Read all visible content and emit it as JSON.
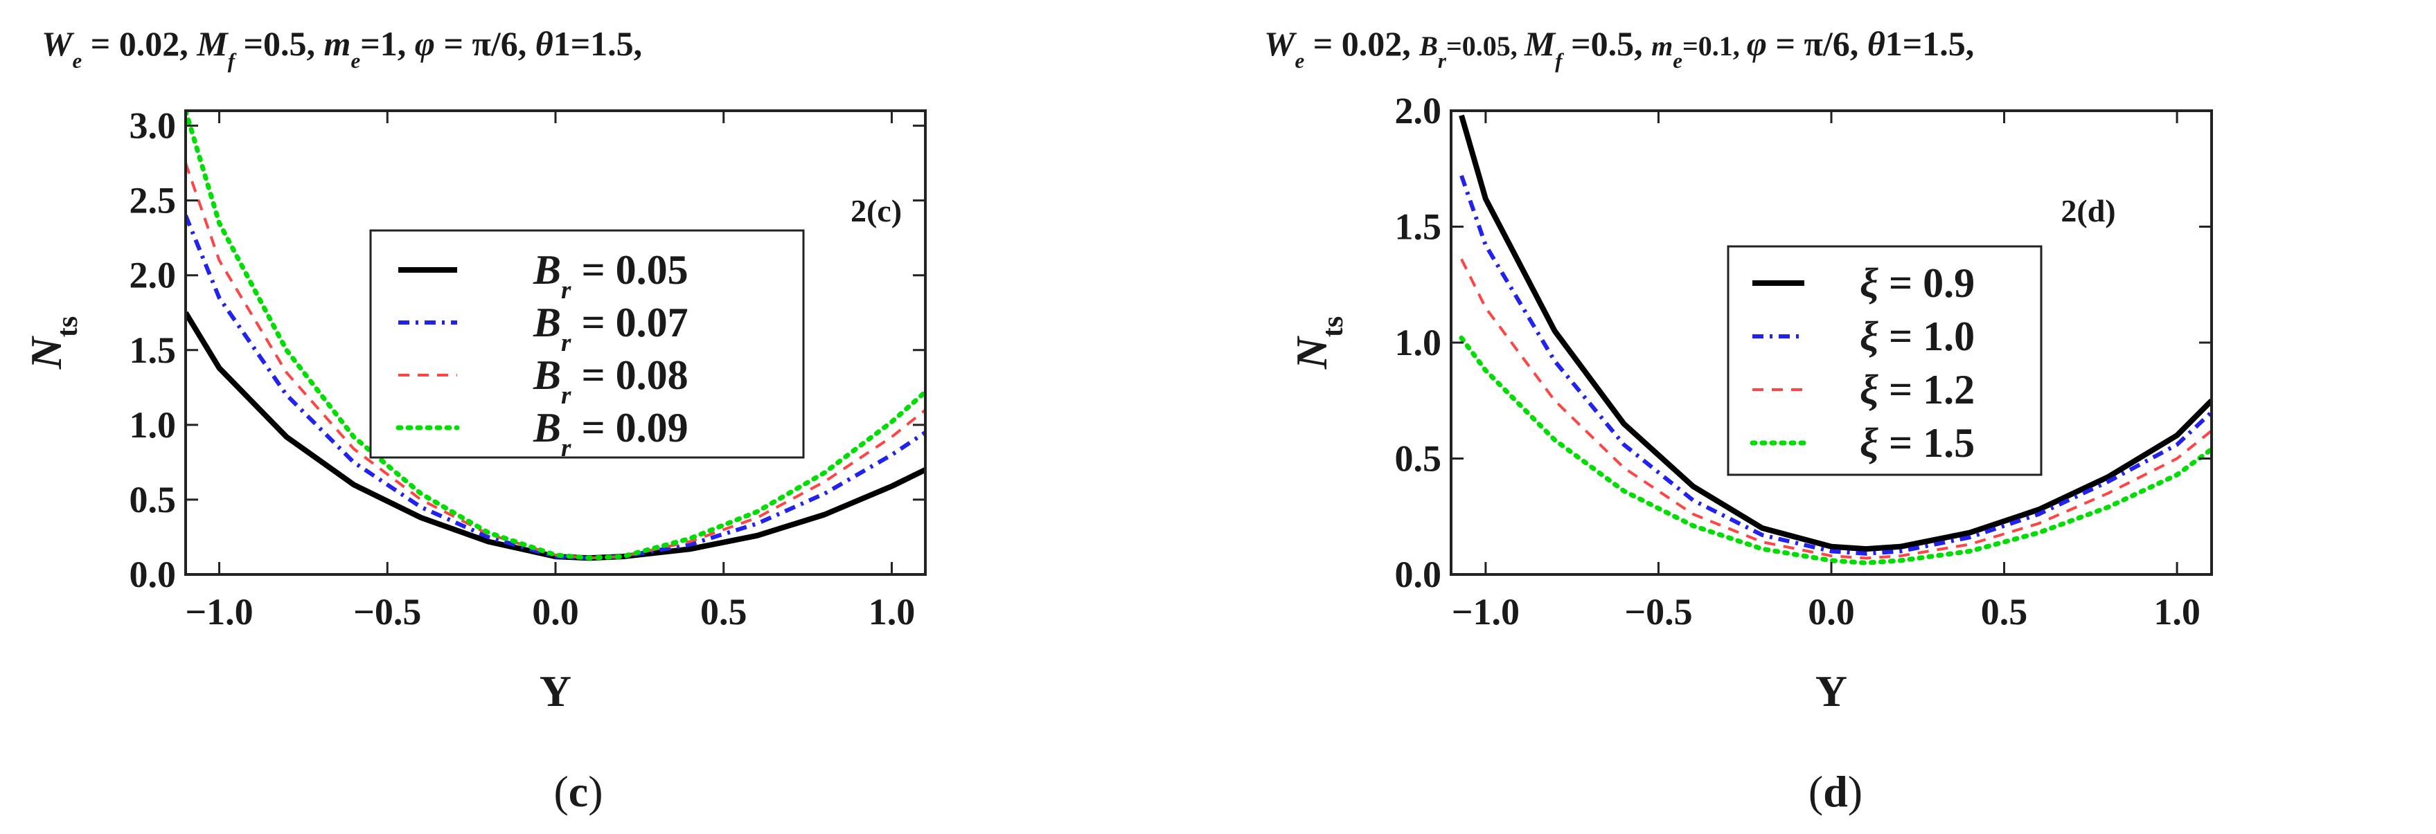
{
  "chart_data": [
    {
      "type": "line",
      "title": "W_e = 0.02, M_f =0.5, m_e=1, φ = π/6, θ1=1.5,",
      "title_parts": [
        {
          "t": "W",
          "i": true
        },
        {
          "t": "e",
          "sub": true,
          "i": true
        },
        {
          "t": " = 0.02, "
        },
        {
          "t": "M",
          "i": true
        },
        {
          "t": "f",
          "sub": true,
          "i": true
        },
        {
          "t": " =0.5, "
        },
        {
          "t": "m",
          "i": true
        },
        {
          "t": "e",
          "sub": true,
          "i": true
        },
        {
          "t": "=1, "
        },
        {
          "t": "φ",
          "i": true
        },
        {
          "t": " = π/6, "
        },
        {
          "t": "θ",
          "i": true
        },
        {
          "t": "1=1.5,"
        }
      ],
      "panel_label": "2(c)",
      "caption": "c",
      "xlabel": "Y",
      "ylabel": "N",
      "ylabel_sub": "ts",
      "xlim": [
        -1.1,
        1.1
      ],
      "ylim": [
        0,
        3.1
      ],
      "xticks": [
        -1.0,
        -0.5,
        0.0,
        0.5,
        1.0
      ],
      "xtick_labels": [
        "−1.0",
        "−0.5",
        "0.0",
        "0.5",
        "1.0"
      ],
      "yticks": [
        0.0,
        0.5,
        1.0,
        1.5,
        2.0,
        2.5,
        3.0
      ],
      "ytick_labels": [
        "0.0",
        "0.5",
        "1.0",
        "1.5",
        "2.0",
        "2.5",
        "3.0"
      ],
      "legend": "center-right",
      "series": [
        {
          "name": "B_r = 0.05",
          "label_parts": [
            {
              "t": "B",
              "i": true
            },
            {
              "t": "r",
              "sub": true,
              "i": true
            },
            {
              "t": " = 0.05"
            }
          ],
          "color": "#000000",
          "dash": "solid",
          "x": [
            -1.1,
            -1.0,
            -0.8,
            -0.6,
            -0.4,
            -0.2,
            0.0,
            0.1,
            0.2,
            0.4,
            0.6,
            0.8,
            1.0,
            1.1
          ],
          "y": [
            1.75,
            1.38,
            0.92,
            0.6,
            0.38,
            0.22,
            0.12,
            0.11,
            0.12,
            0.17,
            0.26,
            0.4,
            0.59,
            0.7
          ]
        },
        {
          "name": "B_r = 0.07",
          "label_parts": [
            {
              "t": "B",
              "i": true
            },
            {
              "t": "r",
              "sub": true,
              "i": true
            },
            {
              "t": " = 0.07"
            }
          ],
          "color": "#2222ee",
          "dash": "dashdot",
          "x": [
            -1.1,
            -1.0,
            -0.8,
            -0.6,
            -0.4,
            -0.2,
            0.0,
            0.1,
            0.2,
            0.4,
            0.6,
            0.8,
            1.0,
            1.1
          ],
          "y": [
            2.4,
            1.85,
            1.2,
            0.75,
            0.45,
            0.25,
            0.12,
            0.11,
            0.12,
            0.2,
            0.34,
            0.54,
            0.8,
            0.95
          ]
        },
        {
          "name": "B_r = 0.08",
          "label_parts": [
            {
              "t": "B",
              "i": true
            },
            {
              "t": "r",
              "sub": true,
              "i": true
            },
            {
              "t": " = 0.08"
            }
          ],
          "color": "#ff4444",
          "dash": "dashed",
          "x": [
            -1.1,
            -1.0,
            -0.8,
            -0.6,
            -0.4,
            -0.2,
            0.0,
            0.1,
            0.2,
            0.4,
            0.6,
            0.8,
            1.0,
            1.1
          ],
          "y": [
            2.75,
            2.1,
            1.35,
            0.84,
            0.5,
            0.27,
            0.13,
            0.11,
            0.12,
            0.22,
            0.38,
            0.62,
            0.92,
            1.1
          ]
        },
        {
          "name": "B_r = 0.09",
          "label_parts": [
            {
              "t": "B",
              "i": true
            },
            {
              "t": "r",
              "sub": true,
              "i": true
            },
            {
              "t": " = 0.09"
            }
          ],
          "color": "#00dd00",
          "dash": "dotted",
          "x": [
            -1.1,
            -1.0,
            -0.8,
            -0.6,
            -0.4,
            -0.2,
            0.0,
            0.1,
            0.2,
            0.4,
            0.6,
            0.8,
            1.0,
            1.1
          ],
          "y": [
            3.1,
            2.35,
            1.5,
            0.92,
            0.54,
            0.28,
            0.13,
            0.11,
            0.12,
            0.24,
            0.42,
            0.68,
            1.02,
            1.22
          ]
        }
      ]
    },
    {
      "type": "line",
      "title": "W_e = 0.02, B_r=0.05, M_f =0.5, m_e=0.1, φ = π/6, θ1=1.5,",
      "title_parts": [
        {
          "t": "W",
          "i": true
        },
        {
          "t": "e",
          "sub": true,
          "i": true
        },
        {
          "t": " = 0.02, "
        },
        {
          "t": "B",
          "i": true,
          "small": true
        },
        {
          "t": "r",
          "sub": true,
          "i": true
        },
        {
          "t": "=0.05, ",
          "small": true
        },
        {
          "t": "M",
          "i": true
        },
        {
          "t": "f",
          "sub": true,
          "i": true
        },
        {
          "t": " =0.5, "
        },
        {
          "t": "m",
          "i": true,
          "small": true
        },
        {
          "t": "e",
          "sub": true,
          "i": true
        },
        {
          "t": "=0.1, ",
          "small": true
        },
        {
          "t": "φ",
          "i": true
        },
        {
          "t": " = π/6, "
        },
        {
          "t": "θ",
          "i": true
        },
        {
          "t": "1=1.5,"
        }
      ],
      "panel_label": "2(d)",
      "caption": "d",
      "xlabel": "Y",
      "ylabel": "N",
      "ylabel_sub": "ts",
      "xlim": [
        -1.1,
        1.1
      ],
      "ylim": [
        0,
        2.0
      ],
      "xticks": [
        -1.0,
        -0.5,
        0.0,
        0.5,
        1.0
      ],
      "xtick_labels": [
        "−1.0",
        "−0.5",
        "0.0",
        "0.5",
        "1.0"
      ],
      "yticks": [
        0.0,
        0.5,
        1.0,
        1.5,
        2.0
      ],
      "ytick_labels": [
        "0.0",
        "0.5",
        "1.0",
        "1.5",
        "2.0"
      ],
      "legend": "center",
      "series": [
        {
          "name": "ξ = 0.9",
          "label_parts": [
            {
              "t": "ξ",
              "i": true
            },
            {
              "t": " = 0.9"
            }
          ],
          "color": "#000000",
          "dash": "solid",
          "x": [
            -1.07,
            -1.0,
            -0.8,
            -0.6,
            -0.4,
            -0.2,
            0.0,
            0.1,
            0.2,
            0.4,
            0.6,
            0.8,
            1.0,
            1.1
          ],
          "y": [
            1.98,
            1.62,
            1.05,
            0.65,
            0.38,
            0.2,
            0.12,
            0.11,
            0.12,
            0.18,
            0.28,
            0.42,
            0.6,
            0.75
          ]
        },
        {
          "name": "ξ = 1.0",
          "label_parts": [
            {
              "t": "ξ",
              "i": true
            },
            {
              "t": " = 1.0"
            }
          ],
          "color": "#2222ee",
          "dash": "dashdot",
          "x": [
            -1.07,
            -1.0,
            -0.8,
            -0.6,
            -0.4,
            -0.2,
            0.0,
            0.1,
            0.2,
            0.4,
            0.6,
            0.8,
            1.0,
            1.1
          ],
          "y": [
            1.72,
            1.42,
            0.92,
            0.56,
            0.32,
            0.17,
            0.1,
            0.09,
            0.1,
            0.16,
            0.26,
            0.4,
            0.56,
            0.7
          ]
        },
        {
          "name": "ξ = 1.2",
          "label_parts": [
            {
              "t": "ξ",
              "i": true
            },
            {
              "t": " = 1.2"
            }
          ],
          "color": "#ff4444",
          "dash": "dashed",
          "x": [
            -1.07,
            -1.0,
            -0.8,
            -0.6,
            -0.4,
            -0.2,
            0.0,
            0.1,
            0.2,
            0.4,
            0.6,
            0.8,
            1.0,
            1.1
          ],
          "y": [
            1.36,
            1.15,
            0.75,
            0.46,
            0.26,
            0.14,
            0.08,
            0.07,
            0.08,
            0.13,
            0.22,
            0.35,
            0.5,
            0.62
          ]
        },
        {
          "name": "ξ = 1.5",
          "label_parts": [
            {
              "t": "ξ",
              "i": true
            },
            {
              "t": " = 1.5"
            }
          ],
          "color": "#00dd00",
          "dash": "dotted",
          "x": [
            -1.07,
            -1.0,
            -0.8,
            -0.6,
            -0.4,
            -0.2,
            0.0,
            0.1,
            0.2,
            0.4,
            0.6,
            0.8,
            1.0,
            1.1
          ],
          "y": [
            1.02,
            0.88,
            0.58,
            0.36,
            0.21,
            0.11,
            0.06,
            0.05,
            0.06,
            0.1,
            0.18,
            0.29,
            0.43,
            0.54
          ]
        }
      ]
    }
  ]
}
